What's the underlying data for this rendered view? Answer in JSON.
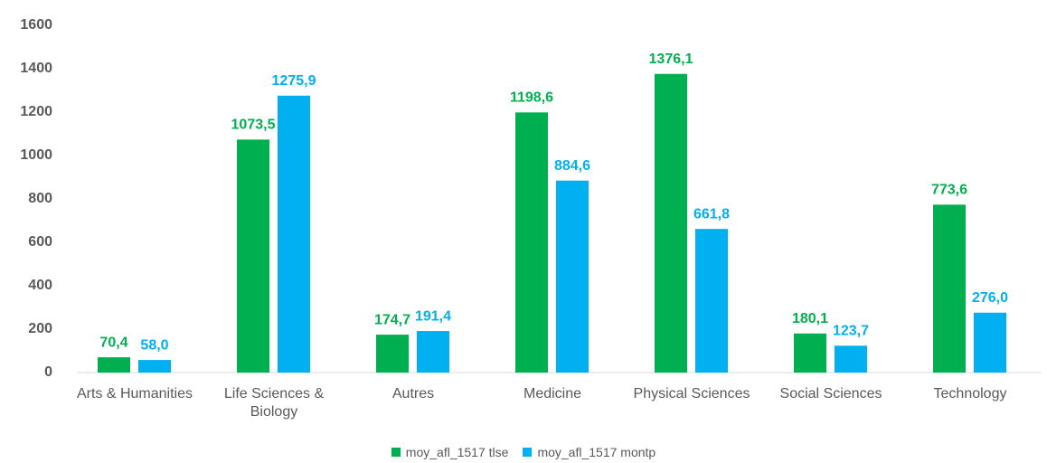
{
  "chart_data": {
    "type": "bar",
    "categories": [
      "Arts & Humanities",
      "Life Sciences & Biology",
      "Autres",
      "Medicine",
      "Physical Sciences",
      "Social Sciences",
      "Technology"
    ],
    "series": [
      {
        "name": "moy_afl_1517 tlse",
        "color": "#00b050",
        "values": [
          70.4,
          1073.5,
          174.7,
          1198.6,
          1376.1,
          180.1,
          773.6
        ],
        "value_labels": [
          "70,4",
          "1073,5",
          "174,7",
          "1198,6",
          "1376,1",
          "180,1",
          "773,6"
        ]
      },
      {
        "name": "moy_afl_1517 montp",
        "color": "#00b0f0",
        "values": [
          58.0,
          1275.9,
          191.4,
          884.6,
          661.8,
          123.7,
          276.0
        ],
        "value_labels": [
          "58,0",
          "1275,9",
          "191,4",
          "884,6",
          "661,8",
          "123,7",
          "276,0"
        ]
      }
    ],
    "ylim": [
      0,
      1600
    ],
    "yticks": [
      0,
      200,
      400,
      600,
      800,
      1000,
      1200,
      1400,
      1600
    ],
    "grid": false,
    "legend": "bottom"
  }
}
